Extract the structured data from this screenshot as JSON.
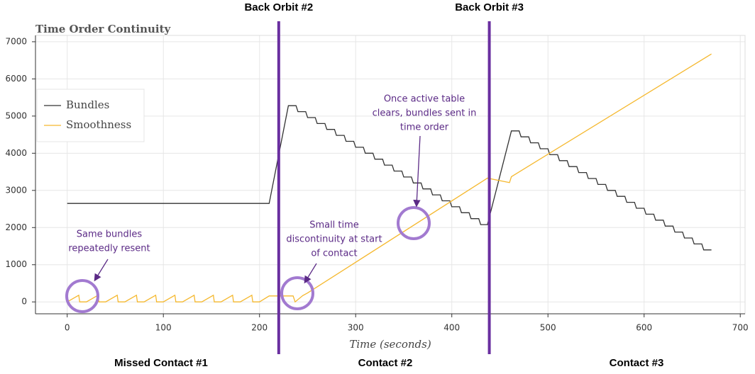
{
  "chart_data": {
    "type": "line",
    "title": "Time Order Continuity",
    "x_label": "Time (seconds)",
    "xlim": [
      -33,
      705
    ],
    "ylim": [
      -320,
      7170
    ],
    "xticks": [
      0,
      100,
      200,
      300,
      400,
      500,
      600,
      700
    ],
    "yticks": [
      0,
      1000,
      2000,
      3000,
      4000,
      5000,
      6000,
      7000
    ],
    "grid": true,
    "legend": "upper-left",
    "series": [
      {
        "name": "Bundles",
        "color": "#333333",
        "x": [
          0,
          210,
          230,
          238,
          240,
          248,
          250,
          258,
          260,
          268,
          270,
          278,
          280,
          288,
          290,
          298,
          300,
          308,
          310,
          318,
          320,
          328,
          330,
          338,
          340,
          348,
          350,
          358,
          360,
          368,
          370,
          378,
          380,
          388,
          390,
          398,
          400,
          408,
          410,
          418,
          420,
          428,
          430,
          437,
          462,
          470,
          472,
          480,
          482,
          490,
          492,
          500,
          502,
          510,
          512,
          520,
          522,
          530,
          532,
          540,
          542,
          550,
          552,
          560,
          562,
          570,
          572,
          580,
          582,
          590,
          592,
          600,
          602,
          610,
          612,
          620,
          622,
          630,
          632,
          640,
          642,
          650,
          652,
          660,
          662,
          670
        ],
        "values": [
          2650,
          2650,
          5280,
          5280,
          5120,
          5120,
          4960,
          4960,
          4800,
          4800,
          4640,
          4640,
          4480,
          4480,
          4320,
          4320,
          4160,
          4160,
          4000,
          4000,
          3840,
          3840,
          3680,
          3680,
          3520,
          3520,
          3360,
          3360,
          3200,
          3200,
          3040,
          3040,
          2880,
          2880,
          2720,
          2720,
          2560,
          2560,
          2400,
          2400,
          2240,
          2240,
          2080,
          2080,
          4600,
          4600,
          4440,
          4440,
          4280,
          4280,
          4120,
          4120,
          3960,
          3960,
          3800,
          3800,
          3640,
          3640,
          3480,
          3480,
          3320,
          3320,
          3160,
          3160,
          3000,
          3000,
          2840,
          2840,
          2680,
          2680,
          2520,
          2520,
          2360,
          2360,
          2200,
          2200,
          2040,
          2040,
          1880,
          1880,
          1720,
          1720,
          1560,
          1560,
          1400,
          1400
        ]
      },
      {
        "name": "Smoothness",
        "color": "#f5b82e",
        "x": [
          0,
          12,
          13,
          20,
          32,
          33,
          40,
          52,
          53,
          60,
          72,
          73,
          80,
          92,
          93,
          100,
          112,
          113,
          120,
          132,
          133,
          140,
          152,
          153,
          160,
          172,
          173,
          180,
          192,
          193,
          200,
          210,
          235,
          237,
          245,
          250,
          437,
          460,
          462,
          670
        ],
        "values": [
          0,
          180,
          0,
          0,
          180,
          0,
          0,
          180,
          0,
          0,
          180,
          0,
          0,
          180,
          0,
          0,
          180,
          0,
          0,
          180,
          0,
          0,
          180,
          0,
          0,
          180,
          0,
          0,
          180,
          0,
          0,
          160,
          160,
          0,
          170,
          240,
          3330,
          3210,
          3370,
          6670
        ]
      }
    ],
    "back_orbits": [
      {
        "label": "Back Orbit #2",
        "x": 220
      },
      {
        "label": "Back Orbit #3",
        "x": 439
      }
    ],
    "contacts": [
      "Missed Contact #1",
      "Contact #2",
      "Contact #3"
    ],
    "annotations": [
      {
        "lines": [
          "Same bundles",
          "repeatedly resent"
        ]
      },
      {
        "lines": [
          "Small time",
          "discontinuity at start",
          "of contact"
        ]
      },
      {
        "lines": [
          "Once active table",
          "clears, bundles sent in",
          "time order"
        ]
      }
    ]
  }
}
